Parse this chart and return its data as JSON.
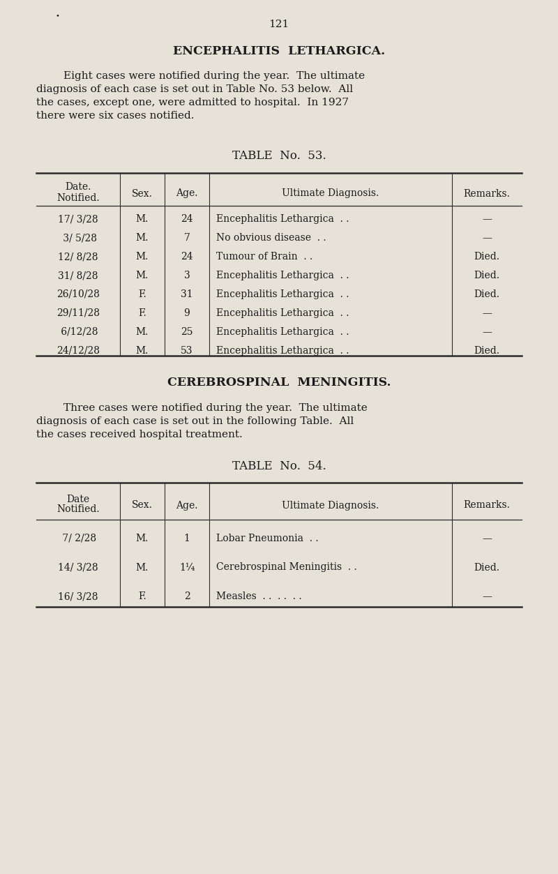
{
  "bg_color": "#e6e2d8",
  "text_color": "#1a1a1a",
  "page_number": "121",
  "section1_title": "ENCEPHALITIS  LETHARGICA.",
  "section1_line1": "        Eight cases were notified during the year.  The ultimate",
  "section1_line2": "diagnosis of each case is set out in Table No. 53 below.  All",
  "section1_line3": "the cases, except one, were admitted to hospital.  In 1927",
  "section1_line4": "there were six cases notified.",
  "table1_title": "TABLE  No.  53.",
  "table1_col_headers": [
    "Date.\nNotified.",
    "Sex.",
    "Age.",
    "Ultimate Diagnosis.",
    "Remarks."
  ],
  "table1_rows": [
    [
      "17/ 3/28",
      "M.",
      "24",
      "Encephalitis Lethargica  . .",
      "—"
    ],
    [
      " 3/ 5/28",
      "M.",
      "7",
      "No obvious disease  . .",
      "—"
    ],
    [
      "12/ 8/28",
      "M.",
      "24",
      "Tumour of Brain  . .",
      "Died."
    ],
    [
      "31/ 8/28",
      "M.",
      "3",
      "Encephalitis Lethargica  . .",
      "Died."
    ],
    [
      "26/10/28",
      "F.",
      "31",
      "Encephalitis Lethargica  . .",
      "Died."
    ],
    [
      "29/11/28",
      "F.",
      "9",
      "Encephalitis Lethargica  . .",
      "—"
    ],
    [
      " 6/12/28",
      "M.",
      "25",
      "Encephalitis Lethargica  . .",
      "—"
    ],
    [
      "24/12/28",
      "M.",
      "53",
      "Encephalitis Lethargica  . .",
      "Died."
    ]
  ],
  "section2_title": "CEREBROSPINAL  MENINGITIS.",
  "section2_line1": "        Three cases were notified during the year.  The ultimate",
  "section2_line2": "diagnosis of each case is set out in the following Table.  All",
  "section2_line3": "the cases received hospital treatment.",
  "table2_title": "TABLE  No.  54.",
  "table2_col_headers": [
    "Date\nNotified.",
    "Sex.",
    "Age.",
    "Ultimate Diagnosis.",
    "Remarks."
  ],
  "table2_rows": [
    [
      " 7/ 2/28",
      "M.",
      "1",
      "Lobar Pneumonia  . .",
      "—"
    ],
    [
      "14/ 3/28",
      "M.",
      "1¼",
      "Cerebrospinal Meningitis  . .",
      "Died."
    ],
    [
      "16/ 3/28",
      "F.",
      "2",
      "Measles  . .  . .  . .",
      "—"
    ]
  ],
  "col_divs": [
    0.065,
    0.215,
    0.295,
    0.375,
    0.81,
    0.935
  ]
}
